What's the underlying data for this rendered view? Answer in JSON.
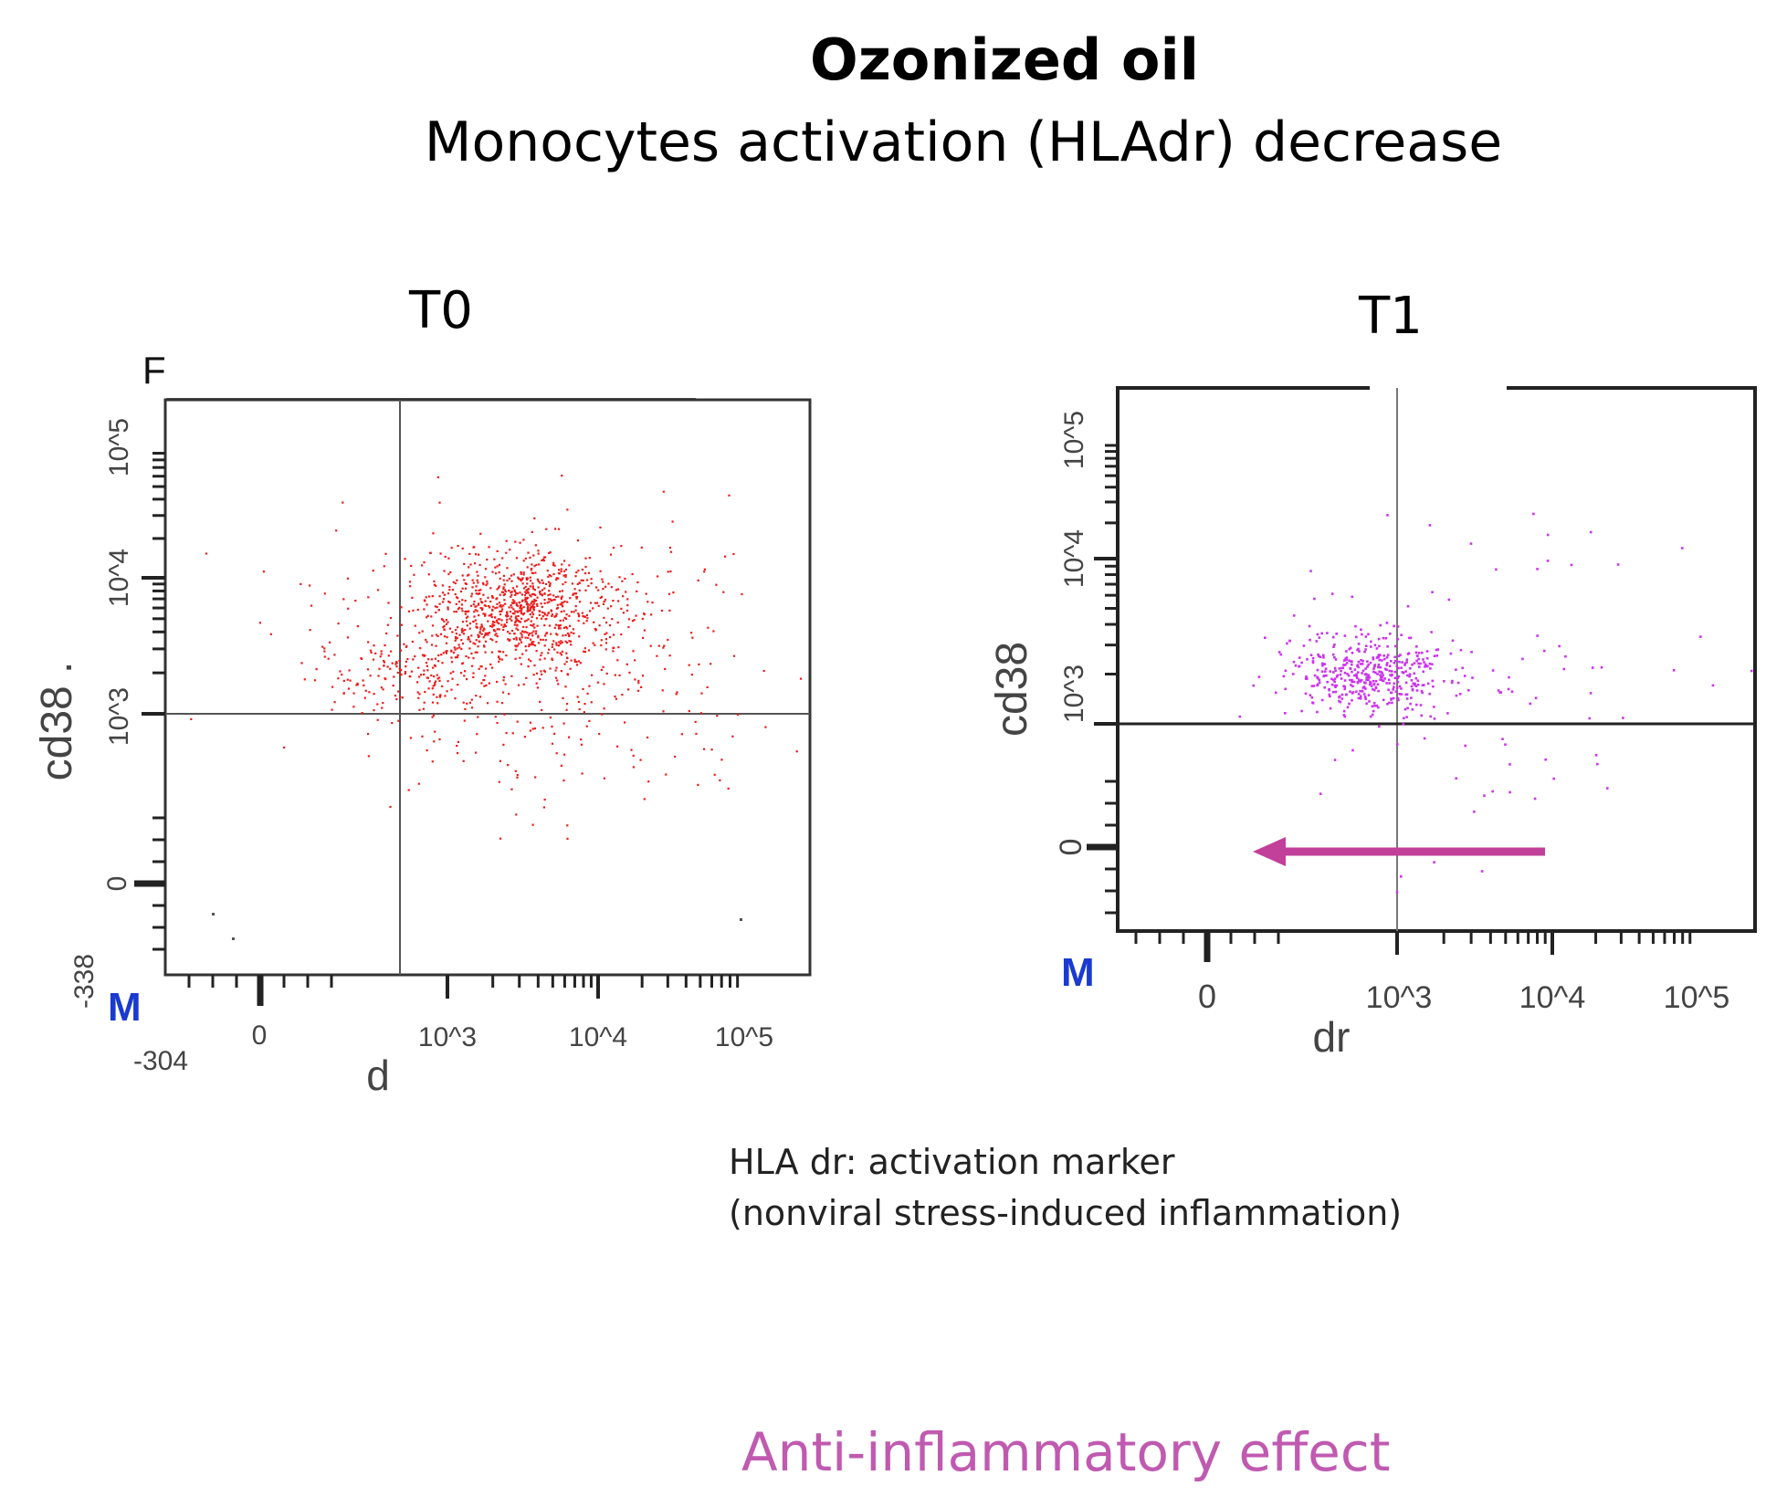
{
  "title": "Ozonized oil",
  "subtitle": "Monocytes activation (HLAdr) decrease",
  "footnote": {
    "line1": "HLA dr: activation marker",
    "line2": "(nonviral stress-induced inflammation)"
  },
  "conclusion": "Anti-inflammatory effect",
  "colors": {
    "t0_points": "#ee1c1c",
    "t1_points": "#cc33ee",
    "arrow": "#c23f9a",
    "conclusion": "#c05ab0",
    "marker_m": "#1a3ad0"
  },
  "chart_data": [
    {
      "type": "scatter",
      "title": "T0",
      "xlabel": "d",
      "ylabel": "cd38 .",
      "marker_label": "M",
      "x_scale": "biexponential",
      "y_scale": "biexponential",
      "x_ticks": [
        "-304",
        "0",
        "10^3",
        "10^4",
        "10^5"
      ],
      "y_ticks": [
        "-338",
        "0",
        "10^3",
        "10^4",
        "10^5"
      ],
      "quadrant_gate": {
        "x": 600,
        "y": 1000
      },
      "clusters": [
        {
          "label": "main population",
          "center": {
            "x": 3000,
            "y": 6000
          },
          "density": "high"
        },
        {
          "label": "spread population",
          "center": {
            "x": 4000,
            "y": 2500
          },
          "density": "medium"
        },
        {
          "label": "left population",
          "center": {
            "x": 200,
            "y": 2000
          },
          "density": "low"
        }
      ],
      "approx_event_count": 1400
    },
    {
      "type": "scatter",
      "title": "T1",
      "xlabel": "dr",
      "ylabel": "cd38",
      "marker_label": "M",
      "x_scale": "biexponential",
      "y_scale": "biexponential",
      "x_ticks": [
        "0",
        "10^3",
        "10^4",
        "10^5"
      ],
      "y_ticks": [
        "0",
        "10^3",
        "10^4",
        "10^5"
      ],
      "quadrant_gate": {
        "x": 1000,
        "y": 800
      },
      "clusters": [
        {
          "label": "main population",
          "center": {
            "x": 350,
            "y": 2000
          },
          "density": "high"
        },
        {
          "label": "scattered events",
          "center": {
            "x": 4000,
            "y": 1500
          },
          "density": "low"
        }
      ],
      "approx_event_count": 520,
      "annotation": {
        "type": "arrow",
        "direction": "left",
        "meaning": "HLAdr decrease"
      }
    }
  ]
}
